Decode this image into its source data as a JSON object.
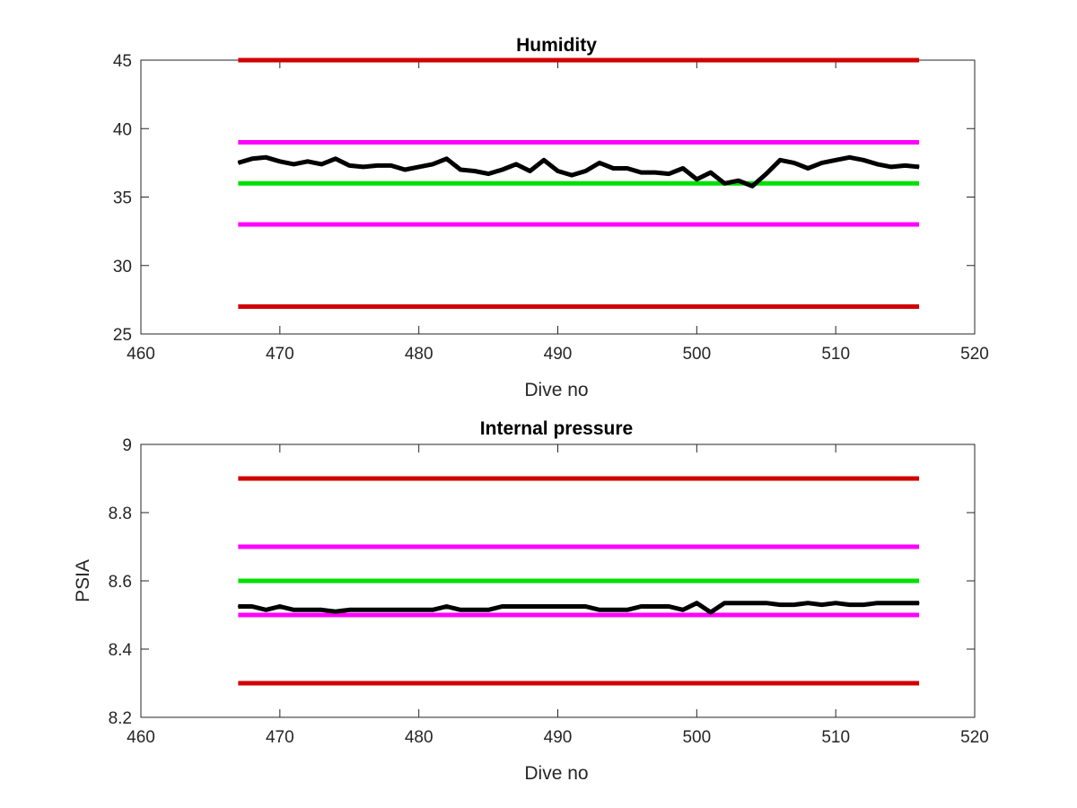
{
  "colors": {
    "data": "#000000",
    "red_limit": "#d00000",
    "magenta_limit": "#ff00ff",
    "green_target": "#00e000",
    "axis": "#262626"
  },
  "chart_data": [
    {
      "type": "line",
      "title": "Humidity",
      "xlabel": "Dive no",
      "ylabel": "",
      "xlim": [
        460,
        520
      ],
      "ylim": [
        25,
        45
      ],
      "xticks": [
        "460",
        "470",
        "480",
        "490",
        "500",
        "510",
        "520"
      ],
      "yticks": [
        "25",
        "30",
        "35",
        "40",
        "45"
      ],
      "grid": false,
      "reference_lines": [
        {
          "y": 45,
          "x": [
            467,
            516
          ],
          "color": "red_limit"
        },
        {
          "y": 39,
          "x": [
            467,
            516
          ],
          "color": "magenta_limit"
        },
        {
          "y": 36,
          "x": [
            467,
            516
          ],
          "color": "green_target"
        },
        {
          "y": 33,
          "x": [
            467,
            516
          ],
          "color": "magenta_limit"
        },
        {
          "y": 27,
          "x": [
            467,
            516
          ],
          "color": "red_limit"
        }
      ],
      "series": [
        {
          "x": [
            467,
            468,
            469,
            470,
            471,
            472,
            473,
            474,
            475,
            476,
            477,
            478,
            479,
            480,
            481,
            482,
            483,
            484,
            485,
            486,
            487,
            488,
            489,
            490,
            491,
            492,
            493,
            494,
            495,
            496,
            497,
            498,
            499,
            500,
            501,
            502,
            503,
            504,
            505,
            506,
            507,
            508,
            509,
            510,
            511,
            512,
            513,
            514,
            515,
            516
          ],
          "values": [
            37.5,
            37.8,
            37.9,
            37.6,
            37.4,
            37.6,
            37.4,
            37.8,
            37.3,
            37.2,
            37.3,
            37.3,
            37.0,
            37.2,
            37.4,
            37.8,
            37.0,
            36.9,
            36.7,
            37.0,
            37.4,
            36.9,
            37.7,
            36.9,
            36.6,
            36.9,
            37.5,
            37.1,
            37.1,
            36.8,
            36.8,
            36.7,
            37.1,
            36.3,
            36.8,
            36.0,
            36.2,
            35.8,
            36.7,
            37.7,
            37.5,
            37.1,
            37.5,
            37.7,
            37.9,
            37.7,
            37.4,
            37.2,
            37.3,
            37.2
          ]
        }
      ]
    },
    {
      "type": "line",
      "title": "Internal pressure",
      "xlabel": "Dive no",
      "ylabel": "PSIA",
      "xlim": [
        460,
        520
      ],
      "ylim": [
        8.2,
        9
      ],
      "xticks": [
        "460",
        "470",
        "480",
        "490",
        "500",
        "510",
        "520"
      ],
      "yticks": [
        "8.2",
        "8.4",
        "8.6",
        "8.8",
        "9"
      ],
      "grid": false,
      "reference_lines": [
        {
          "y": 8.9,
          "x": [
            467,
            516
          ],
          "color": "red_limit"
        },
        {
          "y": 8.7,
          "x": [
            467,
            516
          ],
          "color": "magenta_limit"
        },
        {
          "y": 8.6,
          "x": [
            467,
            516
          ],
          "color": "green_target"
        },
        {
          "y": 8.5,
          "x": [
            467,
            516
          ],
          "color": "magenta_limit"
        },
        {
          "y": 8.3,
          "x": [
            467,
            516
          ],
          "color": "red_limit"
        }
      ],
      "series": [
        {
          "x": [
            467,
            468,
            469,
            470,
            471,
            472,
            473,
            474,
            475,
            476,
            477,
            478,
            479,
            480,
            481,
            482,
            483,
            484,
            485,
            486,
            487,
            488,
            489,
            490,
            491,
            492,
            493,
            494,
            495,
            496,
            497,
            498,
            499,
            500,
            501,
            502,
            503,
            504,
            505,
            506,
            507,
            508,
            509,
            510,
            511,
            512,
            513,
            514,
            515,
            516
          ],
          "values": [
            8.525,
            8.525,
            8.515,
            8.525,
            8.515,
            8.515,
            8.515,
            8.51,
            8.515,
            8.515,
            8.515,
            8.515,
            8.515,
            8.515,
            8.515,
            8.525,
            8.515,
            8.515,
            8.515,
            8.525,
            8.525,
            8.525,
            8.525,
            8.525,
            8.525,
            8.525,
            8.515,
            8.515,
            8.515,
            8.525,
            8.525,
            8.525,
            8.515,
            8.535,
            8.508,
            8.535,
            8.535,
            8.535,
            8.535,
            8.53,
            8.53,
            8.535,
            8.53,
            8.535,
            8.53,
            8.53,
            8.535,
            8.535,
            8.535,
            8.535
          ]
        }
      ]
    }
  ]
}
